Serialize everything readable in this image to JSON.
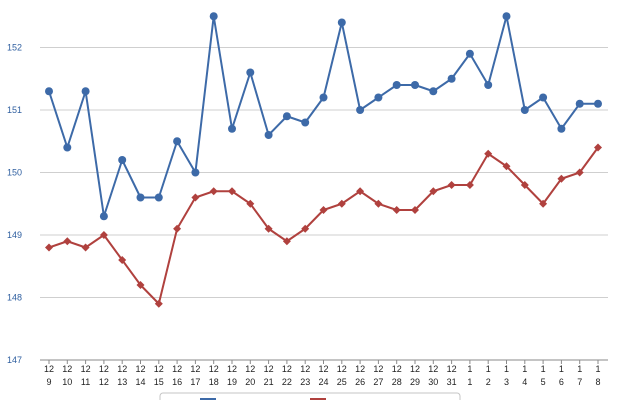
{
  "chart_data": {
    "type": "line",
    "categories": [
      [
        "12",
        "9"
      ],
      [
        "12",
        "10"
      ],
      [
        "12",
        "11"
      ],
      [
        "12",
        "12"
      ],
      [
        "12",
        "13"
      ],
      [
        "12",
        "14"
      ],
      [
        "12",
        "15"
      ],
      [
        "12",
        "16"
      ],
      [
        "12",
        "17"
      ],
      [
        "12",
        "18"
      ],
      [
        "12",
        "19"
      ],
      [
        "12",
        "20"
      ],
      [
        "12",
        "21"
      ],
      [
        "12",
        "22"
      ],
      [
        "12",
        "23"
      ],
      [
        "12",
        "24"
      ],
      [
        "12",
        "25"
      ],
      [
        "12",
        "26"
      ],
      [
        "12",
        "27"
      ],
      [
        "12",
        "28"
      ],
      [
        "12",
        "29"
      ],
      [
        "12",
        "30"
      ],
      [
        "12",
        "31"
      ],
      [
        "1",
        "1"
      ],
      [
        "1",
        "2"
      ],
      [
        "1",
        "3"
      ],
      [
        "1",
        "4"
      ],
      [
        "1",
        "5"
      ],
      [
        "1",
        "6"
      ],
      [
        "1",
        "7"
      ],
      [
        "1",
        "8"
      ]
    ],
    "series": [
      {
        "color": "#3d6aa8",
        "marker": "circle",
        "values": [
          151.3,
          150.4,
          151.3,
          149.3,
          150.2,
          149.6,
          149.6,
          150.5,
          150.0,
          152.5,
          150.7,
          151.6,
          150.6,
          150.9,
          150.8,
          151.2,
          152.4,
          151.0,
          151.2,
          151.4,
          151.4,
          151.3,
          151.5,
          151.9,
          151.4,
          152.5,
          151.0,
          151.2,
          150.7,
          151.1,
          151.1
        ]
      },
      {
        "color": "#b0413e",
        "marker": "diamond",
        "values": [
          148.8,
          148.9,
          148.8,
          149.0,
          148.6,
          148.2,
          147.9,
          149.1,
          149.6,
          149.7,
          149.7,
          149.5,
          149.1,
          148.9,
          149.1,
          149.4,
          149.5,
          149.7,
          149.5,
          149.4,
          149.4,
          149.7,
          149.8,
          149.8,
          150.3,
          150.1,
          149.8,
          149.5,
          149.9,
          150.0,
          150.4
        ]
      }
    ],
    "y_ticks": [
      "147",
      "148",
      "149",
      "150",
      "151",
      "152"
    ],
    "ylim": [
      147,
      152.7
    ],
    "grid": true,
    "legend": "bottom-center",
    "title": "",
    "xlabel": "",
    "ylabel": ""
  }
}
